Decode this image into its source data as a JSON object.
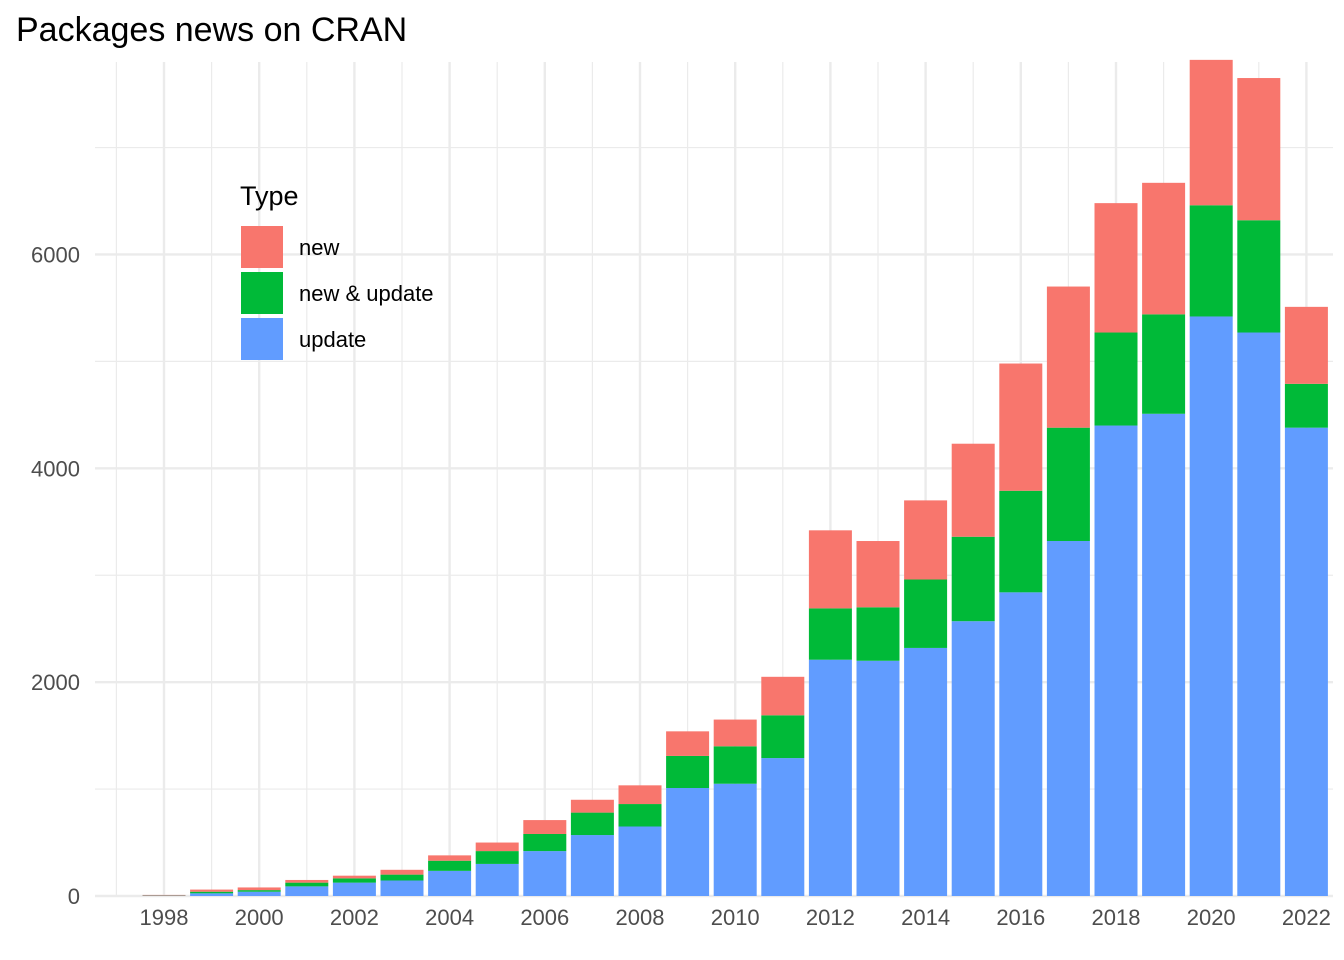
{
  "chart_data": {
    "type": "bar",
    "stacked": true,
    "title": "Packages news on CRAN",
    "xlabel": "",
    "ylabel": "",
    "x": [
      1998,
      1999,
      2000,
      2001,
      2002,
      2003,
      2004,
      2005,
      2006,
      2007,
      2008,
      2009,
      2010,
      2011,
      2012,
      2013,
      2014,
      2015,
      2016,
      2017,
      2018,
      2019,
      2020,
      2021,
      2022
    ],
    "x_tick_labels": [
      "1998",
      "2000",
      "2002",
      "2004",
      "2006",
      "2008",
      "2010",
      "2012",
      "2014",
      "2016",
      "2018",
      "2020",
      "2022"
    ],
    "x_tick_values": [
      1998,
      2000,
      2002,
      2004,
      2006,
      2008,
      2010,
      2012,
      2014,
      2016,
      2018,
      2020,
      2022
    ],
    "y_tick_labels": [
      "0",
      "2000",
      "4000",
      "6000"
    ],
    "y_tick_values": [
      0,
      2000,
      4000,
      6000
    ],
    "ylim": [
      0,
      7800
    ],
    "grid": true,
    "legend": {
      "title": "Type",
      "placement": "top-left",
      "items": [
        "new",
        "new & update",
        "update"
      ]
    },
    "series": [
      {
        "name": "update",
        "color": "#619CFF",
        "values": [
          3,
          25,
          40,
          90,
          125,
          145,
          235,
          300,
          420,
          570,
          650,
          1010,
          1050,
          1290,
          2210,
          2200,
          2320,
          2570,
          2840,
          3320,
          4400,
          4510,
          5420,
          5270,
          4380
        ]
      },
      {
        "name": "new & update",
        "color": "#00BA38",
        "values": [
          2,
          15,
          15,
          35,
          40,
          55,
          95,
          120,
          160,
          210,
          210,
          300,
          350,
          400,
          480,
          500,
          640,
          790,
          950,
          1060,
          870,
          930,
          1040,
          1050,
          410
        ]
      },
      {
        "name": "new",
        "color": "#F8766D",
        "values": [
          5,
          20,
          25,
          25,
          25,
          45,
          50,
          80,
          130,
          120,
          175,
          230,
          250,
          360,
          730,
          620,
          740,
          870,
          1190,
          1320,
          1210,
          1230,
          1360,
          1330,
          720
        ]
      }
    ]
  }
}
